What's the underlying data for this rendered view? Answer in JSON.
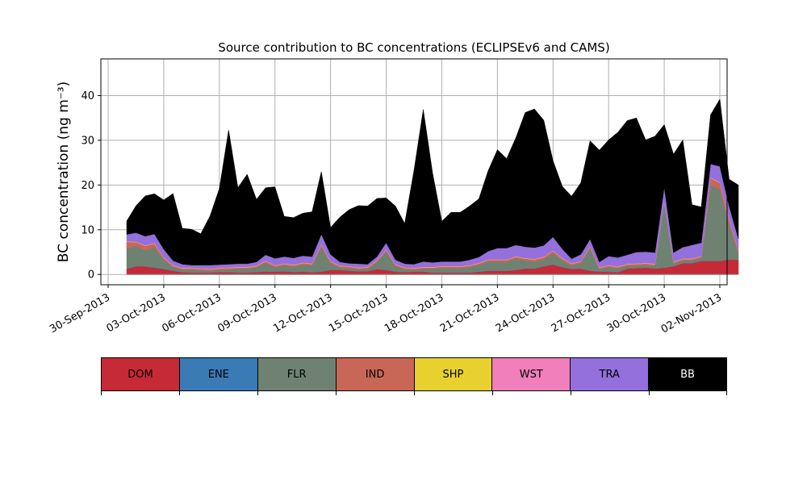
{
  "chart_data": {
    "type": "area",
    "title": "Source contribution to BC concentrations (ECLIPSEv6 and CAMS)",
    "ylabel": "BC concentration (ng m⁻³)",
    "xlabel": "",
    "ylim": [
      -2.3,
      48.2
    ],
    "xlim": [
      "2013-09-30",
      "2013-11-02"
    ],
    "grid": true,
    "x_date_start": "2013-10-01",
    "x_step_days": 0.5,
    "yticks": [
      0,
      10,
      20,
      30,
      40
    ],
    "xtick_labels": [
      "30-Sep-2013",
      "03-Oct-2013",
      "06-Oct-2013",
      "09-Oct-2013",
      "12-Oct-2013",
      "15-Oct-2013",
      "18-Oct-2013",
      "21-Oct-2013",
      "24-Oct-2013",
      "27-Oct-2013",
      "30-Oct-2013",
      "02-Nov-2013"
    ],
    "xtick_dates": [
      "2013-09-30",
      "2013-10-03",
      "2013-10-06",
      "2013-10-09",
      "2013-10-12",
      "2013-10-15",
      "2013-10-18",
      "2013-10-21",
      "2013-10-24",
      "2013-10-27",
      "2013-10-30",
      "2013-11-02"
    ],
    "series": [
      {
        "name": "DOM",
        "color": "#c62a36",
        "values": [
          1.2,
          1.8,
          1.8,
          1.5,
          1.2,
          0.8,
          0.5,
          0.4,
          0.4,
          0.4,
          0.5,
          0.5,
          0.4,
          0.4,
          0.5,
          0.6,
          0.6,
          0.7,
          0.5,
          0.6,
          0.5,
          0.6,
          1.0,
          1.0,
          0.8,
          0.7,
          0.7,
          1.2,
          1.0,
          0.6,
          0.5,
          0.6,
          0.6,
          0.4,
          0.4,
          0.4,
          0.4,
          0.4,
          0.6,
          0.8,
          0.8,
          0.8,
          1.0,
          1.3,
          1.3,
          1.8,
          2.2,
          1.6,
          1.2,
          1.3,
          0.8,
          0.6,
          0.6,
          0.5,
          1.3,
          1.4,
          1.5,
          1.3,
          1.5,
          1.8,
          2.5,
          2.5,
          3.0,
          3.0,
          3.0,
          3.3,
          3.3
        ]
      },
      {
        "name": "ENE",
        "color": "#3a7ab5",
        "values": [
          0.1,
          0.1,
          0.1,
          0.1,
          0.1,
          0.05,
          0.05,
          0.05,
          0.05,
          0.05,
          0.05,
          0.05,
          0.05,
          0.05,
          0.05,
          0.05,
          0.05,
          0.05,
          0.05,
          0.05,
          0.05,
          0.05,
          0.05,
          0.05,
          0.05,
          0.05,
          0.05,
          0.05,
          0.05,
          0.05,
          0.05,
          0.05,
          0.05,
          0.05,
          0.05,
          0.05,
          0.05,
          0.05,
          0.05,
          0.05,
          0.05,
          0.05,
          0.05,
          0.05,
          0.05,
          0.05,
          0.05,
          0.05,
          0.05,
          0.05,
          0.05,
          0.05,
          0.05,
          0.05,
          0.05,
          0.05,
          0.05,
          0.05,
          0.05,
          0.05,
          0.05,
          0.05,
          0.05,
          0.05,
          0.05,
          0.05,
          0.05
        ]
      },
      {
        "name": "FLR",
        "color": "#6f8272",
        "values": [
          4.5,
          4.5,
          3.5,
          4.5,
          2.0,
          0.8,
          0.5,
          0.6,
          0.5,
          0.4,
          0.5,
          0.6,
          0.8,
          0.8,
          1.0,
          2.0,
          1.0,
          1.3,
          1.2,
          1.5,
          1.5,
          5.5,
          1.5,
          0.5,
          0.6,
          0.4,
          0.5,
          1.5,
          4.0,
          1.2,
          0.6,
          0.4,
          0.6,
          0.8,
          1.0,
          1.0,
          1.0,
          1.2,
          1.5,
          2.0,
          2.0,
          2.0,
          2.5,
          1.8,
          1.5,
          1.5,
          2.5,
          1.5,
          0.8,
          1.2,
          5.0,
          0.5,
          1.0,
          0.8,
          0.6,
          0.6,
          0.6,
          0.6,
          14.5,
          0.6,
          0.6,
          0.6,
          0.6,
          17.0,
          16.0,
          8.0,
          1.5
        ]
      },
      {
        "name": "IND",
        "color": "#c86757",
        "values": [
          1.5,
          0.8,
          1.0,
          0.8,
          0.4,
          0.3,
          0.3,
          0.3,
          0.3,
          0.3,
          0.3,
          0.3,
          0.3,
          0.3,
          0.3,
          0.3,
          0.3,
          0.3,
          0.3,
          0.4,
          0.3,
          0.5,
          0.3,
          0.3,
          0.3,
          0.3,
          0.3,
          0.3,
          0.4,
          0.3,
          0.3,
          0.3,
          0.3,
          0.3,
          0.3,
          0.3,
          0.3,
          0.3,
          0.3,
          0.4,
          0.4,
          0.4,
          0.4,
          0.4,
          0.5,
          0.5,
          0.5,
          0.4,
          0.3,
          0.3,
          0.4,
          0.3,
          0.3,
          0.3,
          0.3,
          0.3,
          0.3,
          0.3,
          0.3,
          0.3,
          0.3,
          0.3,
          0.3,
          1.5,
          1.5,
          1.0,
          0.5
        ]
      },
      {
        "name": "SHP",
        "color": "#e8d12f",
        "values": [
          0.05,
          0.05,
          0.05,
          0.05,
          0.05,
          0.05,
          0.05,
          0.05,
          0.05,
          0.05,
          0.05,
          0.05,
          0.05,
          0.05,
          0.05,
          0.05,
          0.05,
          0.05,
          0.05,
          0.05,
          0.05,
          0.05,
          0.05,
          0.05,
          0.05,
          0.05,
          0.05,
          0.05,
          0.05,
          0.05,
          0.05,
          0.05,
          0.05,
          0.05,
          0.05,
          0.05,
          0.05,
          0.05,
          0.05,
          0.05,
          0.05,
          0.05,
          0.05,
          0.05,
          0.05,
          0.05,
          0.05,
          0.05,
          0.05,
          0.05,
          0.05,
          0.05,
          0.05,
          0.05,
          0.05,
          0.05,
          0.05,
          0.05,
          0.05,
          0.05,
          0.05,
          0.05,
          0.05,
          0.05,
          0.05,
          0.05,
          0.05
        ]
      },
      {
        "name": "WST",
        "color": "#f07fbb",
        "values": [
          0.1,
          0.1,
          0.1,
          0.1,
          0.1,
          0.1,
          0.1,
          0.1,
          0.1,
          0.1,
          0.1,
          0.1,
          0.1,
          0.1,
          0.1,
          0.1,
          0.1,
          0.1,
          0.1,
          0.1,
          0.1,
          0.1,
          0.1,
          0.1,
          0.1,
          0.1,
          0.1,
          0.1,
          0.1,
          0.1,
          0.1,
          0.1,
          0.1,
          0.1,
          0.1,
          0.1,
          0.1,
          0.1,
          0.1,
          0.1,
          0.1,
          0.1,
          0.1,
          0.1,
          0.1,
          0.1,
          0.1,
          0.1,
          0.1,
          0.1,
          0.1,
          0.1,
          0.1,
          0.1,
          0.1,
          0.1,
          0.1,
          0.1,
          0.1,
          0.1,
          0.1,
          0.1,
          0.1,
          0.1,
          0.1,
          0.1,
          0.1
        ]
      },
      {
        "name": "TRA",
        "color": "#9370db",
        "values": [
          1.5,
          2.0,
          2.0,
          2.0,
          1.8,
          1.0,
          0.8,
          0.6,
          0.7,
          0.8,
          0.7,
          0.7,
          0.7,
          0.7,
          0.8,
          1.3,
          1.5,
          1.5,
          1.5,
          1.5,
          1.5,
          2.2,
          1.5,
          0.8,
          0.6,
          0.8,
          0.6,
          0.8,
          1.5,
          1.0,
          0.8,
          0.8,
          1.2,
          1.0,
          1.0,
          1.0,
          1.0,
          1.2,
          1.3,
          1.8,
          2.5,
          2.5,
          2.5,
          2.5,
          2.5,
          2.5,
          3.0,
          2.0,
          1.0,
          1.5,
          1.5,
          1.2,
          2.0,
          2.0,
          2.0,
          2.5,
          2.5,
          2.5,
          3.0,
          2.0,
          2.5,
          3.0,
          3.0,
          3.0,
          3.5,
          2.8,
          2.5
        ]
      },
      {
        "name": "BB",
        "color": "#000000",
        "values": [
          3.0,
          6.0,
          9.0,
          9.0,
          11.0,
          15.0,
          8.0,
          8.0,
          7.0,
          11.0,
          17.0,
          30.0,
          17.0,
          20.0,
          14.0,
          15.0,
          16.0,
          9.0,
          9.0,
          9.5,
          10.0,
          14.0,
          6.0,
          10.0,
          12.0,
          13.0,
          13.0,
          13.0,
          10.0,
          12.0,
          9.0,
          21.0,
          34.0,
          20.0,
          9.0,
          11.0,
          11.0,
          12.0,
          13.0,
          18.0,
          22.0,
          20.0,
          24.0,
          30.0,
          31.0,
          28.0,
          17.0,
          14.0,
          14.0,
          16.0,
          22.0,
          25.0,
          26.0,
          28.0,
          30.0,
          30.0,
          25.0,
          26.0,
          14.0,
          22.0,
          24.0,
          9.0,
          8.0,
          11.0,
          15.0,
          6.0,
          12.0
        ]
      }
    ]
  },
  "legend": {
    "items": [
      {
        "label": "DOM",
        "color": "#c62a36",
        "text_color": "#000000"
      },
      {
        "label": "ENE",
        "color": "#3a7ab5",
        "text_color": "#000000"
      },
      {
        "label": "FLR",
        "color": "#6f8272",
        "text_color": "#000000"
      },
      {
        "label": "IND",
        "color": "#c86757",
        "text_color": "#000000"
      },
      {
        "label": "SHP",
        "color": "#e8d12f",
        "text_color": "#000000"
      },
      {
        "label": "WST",
        "color": "#f07fbb",
        "text_color": "#000000"
      },
      {
        "label": "TRA",
        "color": "#9370db",
        "text_color": "#000000"
      },
      {
        "label": "BB",
        "color": "#000000",
        "text_color": "#ffffff"
      }
    ]
  }
}
